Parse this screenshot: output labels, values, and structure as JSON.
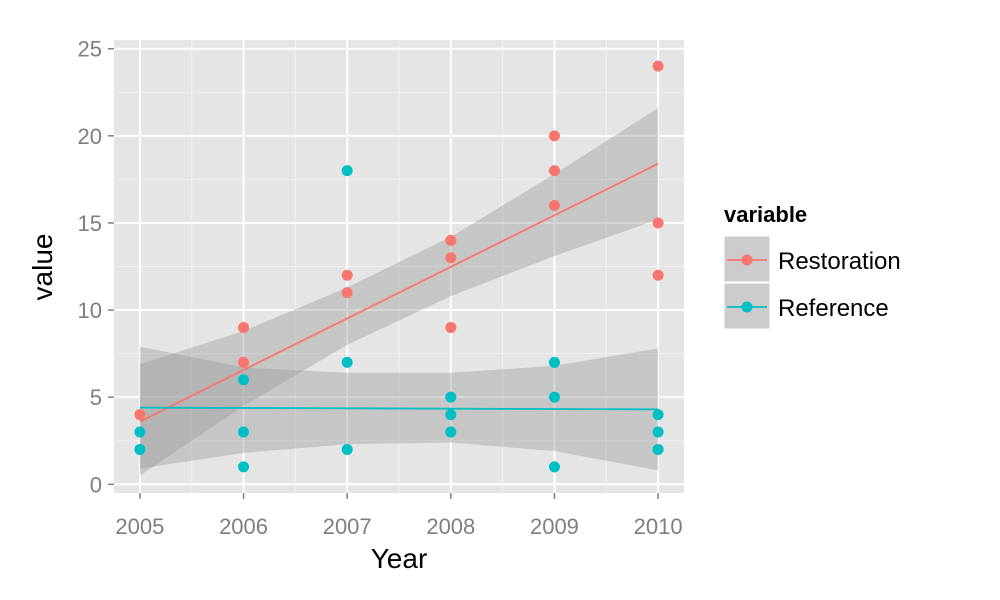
{
  "chart_data": {
    "type": "scatter",
    "xlabel": "Year",
    "ylabel": "value",
    "xlim": [
      2004.75,
      2010.25
    ],
    "ylim": [
      -0.5,
      25.5
    ],
    "x_ticks": [
      2005,
      2006,
      2007,
      2008,
      2009,
      2010
    ],
    "y_ticks": [
      0,
      5,
      10,
      15,
      20,
      25
    ],
    "grid": true,
    "legend": {
      "title": "variable",
      "placement": "right"
    },
    "series": [
      {
        "name": "Restoration",
        "color": "#F8766D",
        "points": [
          [
            2005,
            4
          ],
          [
            2006,
            7
          ],
          [
            2006,
            9
          ],
          [
            2007,
            11
          ],
          [
            2007,
            12
          ],
          [
            2008,
            9
          ],
          [
            2008,
            13
          ],
          [
            2008,
            14
          ],
          [
            2009,
            16
          ],
          [
            2009,
            18
          ],
          [
            2009,
            20
          ],
          [
            2010,
            12
          ],
          [
            2010,
            15
          ],
          [
            2010,
            24
          ]
        ],
        "fit": {
          "x": [
            2005,
            2010
          ],
          "y": [
            3.6,
            18.4
          ]
        },
        "band": {
          "x": [
            2005,
            2006,
            2007,
            2008,
            2009,
            2010
          ],
          "upper": [
            6.9,
            8.8,
            11.3,
            14.2,
            17.8,
            21.6
          ],
          "lower": [
            0.5,
            4.5,
            8.0,
            10.8,
            13.1,
            15.2
          ]
        }
      },
      {
        "name": "Reference",
        "color": "#00BFC4",
        "points": [
          [
            2005,
            2
          ],
          [
            2005,
            3
          ],
          [
            2006,
            1
          ],
          [
            2006,
            3
          ],
          [
            2006,
            6
          ],
          [
            2007,
            2
          ],
          [
            2007,
            7
          ],
          [
            2007,
            18
          ],
          [
            2008,
            3
          ],
          [
            2008,
            4
          ],
          [
            2008,
            5
          ],
          [
            2009,
            1
          ],
          [
            2009,
            5
          ],
          [
            2009,
            7
          ],
          [
            2010,
            2
          ],
          [
            2010,
            3
          ],
          [
            2010,
            4
          ]
        ],
        "fit": {
          "x": [
            2005,
            2010
          ],
          "y": [
            4.4,
            4.3
          ]
        },
        "band": {
          "x": [
            2005,
            2006,
            2007,
            2008,
            2009,
            2010
          ],
          "upper": [
            7.9,
            6.7,
            6.4,
            6.4,
            6.8,
            7.8
          ],
          "lower": [
            0.9,
            1.8,
            2.3,
            2.4,
            1.9,
            0.8
          ]
        }
      }
    ]
  },
  "colors": {
    "panel_background": "#e5e5e5",
    "grid_major": "#ffffff",
    "grid_minor": "#f2f2f2",
    "confidence_band": "#999999",
    "legend_key_background": "#cccccc"
  }
}
